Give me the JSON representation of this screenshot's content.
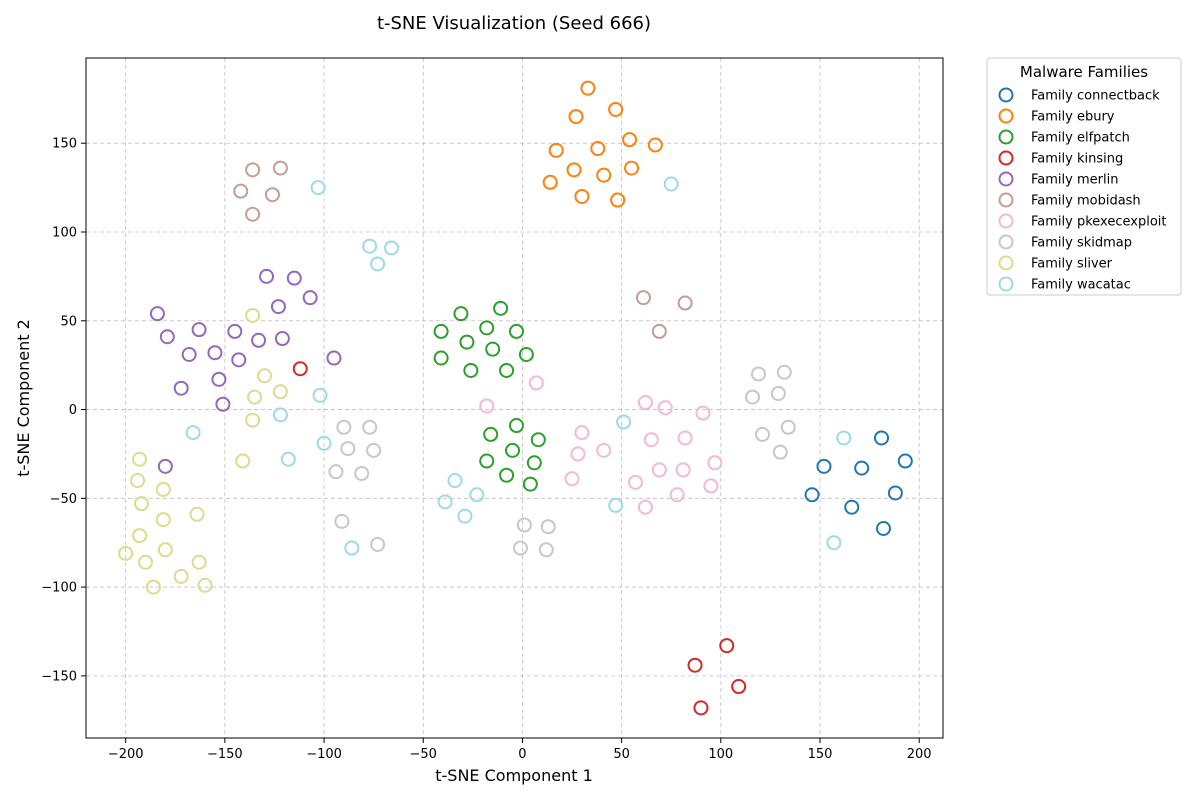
{
  "chart_data": {
    "type": "scatter",
    "title": "t-SNE Visualization (Seed 666)",
    "xlabel": "t-SNE Component 1",
    "ylabel": "t-SNE Component 2",
    "xlim": [
      -220,
      212
    ],
    "ylim": [
      -185,
      198
    ],
    "xticks": [
      -200,
      -150,
      -100,
      -50,
      0,
      50,
      100,
      150,
      200
    ],
    "yticks": [
      -150,
      -100,
      -50,
      0,
      50,
      100,
      150
    ],
    "grid": true,
    "legend": {
      "title": "Malware Families",
      "placement": "outside-top-right"
    },
    "series": [
      {
        "name": "Family connectback",
        "color": "#1f77b4",
        "points": [
          [
            146,
            -48
          ],
          [
            152,
            -32
          ],
          [
            166,
            -55
          ],
          [
            171,
            -33
          ],
          [
            181,
            -16
          ],
          [
            182,
            -67
          ],
          [
            188,
            -47
          ],
          [
            193,
            -29
          ]
        ]
      },
      {
        "name": "Family ebury",
        "color": "#ff7f0e",
        "points": [
          [
            33,
            181
          ],
          [
            47,
            169
          ],
          [
            27,
            165
          ],
          [
            54,
            152
          ],
          [
            67,
            149
          ],
          [
            38,
            147
          ],
          [
            17,
            146
          ],
          [
            55,
            136
          ],
          [
            26,
            135
          ],
          [
            41,
            132
          ],
          [
            14,
            128
          ],
          [
            30,
            120
          ],
          [
            48,
            118
          ]
        ]
      },
      {
        "name": "Family elfpatch",
        "color": "#2ca02c",
        "points": [
          [
            -11,
            57
          ],
          [
            -31,
            54
          ],
          [
            -18,
            46
          ],
          [
            -41,
            44
          ],
          [
            -3,
            44
          ],
          [
            -28,
            38
          ],
          [
            -15,
            34
          ],
          [
            2,
            31
          ],
          [
            -41,
            29
          ],
          [
            -26,
            22
          ],
          [
            -8,
            22
          ],
          [
            -3,
            -9
          ],
          [
            -16,
            -14
          ],
          [
            8,
            -17
          ],
          [
            -5,
            -23
          ],
          [
            -18,
            -29
          ],
          [
            6,
            -30
          ],
          [
            -8,
            -37
          ],
          [
            4,
            -42
          ]
        ]
      },
      {
        "name": "Family kinsing",
        "color": "#d62728",
        "points": [
          [
            -112,
            23
          ],
          [
            103,
            -133
          ],
          [
            87,
            -144
          ],
          [
            109,
            -156
          ],
          [
            90,
            -168
          ]
        ]
      },
      {
        "name": "Family merlin",
        "color": "#9467bd",
        "points": [
          [
            -129,
            75
          ],
          [
            -115,
            74
          ],
          [
            -107,
            63
          ],
          [
            -123,
            58
          ],
          [
            -184,
            54
          ],
          [
            -163,
            45
          ],
          [
            -145,
            44
          ],
          [
            -179,
            41
          ],
          [
            -121,
            40
          ],
          [
            -133,
            39
          ],
          [
            -155,
            32
          ],
          [
            -168,
            31
          ],
          [
            -95,
            29
          ],
          [
            -143,
            28
          ],
          [
            -153,
            17
          ],
          [
            -172,
            12
          ],
          [
            -151,
            3
          ],
          [
            -180,
            -32
          ]
        ]
      },
      {
        "name": "Family mobidash",
        "color": "#c49c94",
        "points": [
          [
            -122,
            136
          ],
          [
            -136,
            135
          ],
          [
            -142,
            123
          ],
          [
            -126,
            121
          ],
          [
            -136,
            110
          ],
          [
            61,
            63
          ],
          [
            82,
            60
          ],
          [
            69,
            44
          ]
        ]
      },
      {
        "name": "Family pkexecexploit",
        "color": "#f7b6d2",
        "points": [
          [
            7,
            15
          ],
          [
            -18,
            2
          ],
          [
            62,
            4
          ],
          [
            72,
            1
          ],
          [
            91,
            -2
          ],
          [
            30,
            -13
          ],
          [
            82,
            -16
          ],
          [
            65,
            -17
          ],
          [
            41,
            -23
          ],
          [
            28,
            -25
          ],
          [
            97,
            -30
          ],
          [
            69,
            -34
          ],
          [
            81,
            -34
          ],
          [
            25,
            -39
          ],
          [
            57,
            -41
          ],
          [
            95,
            -43
          ],
          [
            78,
            -48
          ],
          [
            62,
            -55
          ]
        ]
      },
      {
        "name": "Family skidmap",
        "color": "#c7c7c7",
        "points": [
          [
            132,
            21
          ],
          [
            119,
            20
          ],
          [
            129,
            9
          ],
          [
            116,
            7
          ],
          [
            134,
            -10
          ],
          [
            121,
            -14
          ],
          [
            130,
            -24
          ],
          [
            -90,
            -10
          ],
          [
            -77,
            -10
          ],
          [
            -88,
            -22
          ],
          [
            -75,
            -23
          ],
          [
            -94,
            -35
          ],
          [
            -81,
            -36
          ],
          [
            -91,
            -63
          ],
          [
            -73,
            -76
          ],
          [
            1,
            -65
          ],
          [
            13,
            -66
          ],
          [
            -1,
            -78
          ],
          [
            12,
            -79
          ]
        ]
      },
      {
        "name": "Family sliver",
        "color": "#dbdb8d",
        "points": [
          [
            -136,
            53
          ],
          [
            -130,
            19
          ],
          [
            -122,
            10
          ],
          [
            -135,
            7
          ],
          [
            -136,
            -6
          ],
          [
            -141,
            -29
          ],
          [
            -193,
            -28
          ],
          [
            -194,
            -40
          ],
          [
            -181,
            -45
          ],
          [
            -192,
            -53
          ],
          [
            -164,
            -59
          ],
          [
            -181,
            -62
          ],
          [
            -193,
            -71
          ],
          [
            -180,
            -79
          ],
          [
            -200,
            -81
          ],
          [
            -163,
            -86
          ],
          [
            -190,
            -86
          ],
          [
            -172,
            -94
          ],
          [
            -160,
            -99
          ],
          [
            -186,
            -100
          ]
        ]
      },
      {
        "name": "Family wacatac",
        "color": "#9edae5",
        "points": [
          [
            -103,
            125
          ],
          [
            75,
            127
          ],
          [
            -77,
            92
          ],
          [
            -66,
            91
          ],
          [
            -73,
            82
          ],
          [
            -102,
            8
          ],
          [
            -122,
            -3
          ],
          [
            51,
            -7
          ],
          [
            -166,
            -13
          ],
          [
            -100,
            -19
          ],
          [
            162,
            -16
          ],
          [
            -118,
            -28
          ],
          [
            -34,
            -40
          ],
          [
            -23,
            -48
          ],
          [
            -39,
            -52
          ],
          [
            47,
            -54
          ],
          [
            -29,
            -60
          ],
          [
            -86,
            -78
          ],
          [
            157,
            -75
          ]
        ]
      }
    ]
  }
}
